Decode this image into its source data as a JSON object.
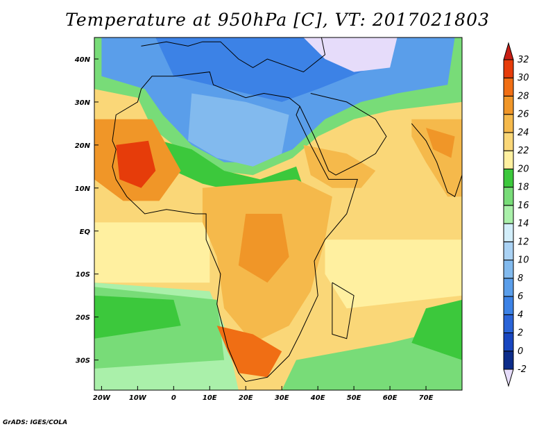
{
  "title": "Temperature at 950hPa [C], VT: 2017021803",
  "credit": "GrADS: IGES/COLA",
  "map": {
    "lon_range": [
      -22,
      80
    ],
    "lat_range": [
      -37,
      45
    ],
    "lon_ticks": [
      {
        "lon": -20,
        "label": "20W"
      },
      {
        "lon": -10,
        "label": "10W"
      },
      {
        "lon": 0,
        "label": "0"
      },
      {
        "lon": 10,
        "label": "10E"
      },
      {
        "lon": 20,
        "label": "20E"
      },
      {
        "lon": 30,
        "label": "30E"
      },
      {
        "lon": 40,
        "label": "40E"
      },
      {
        "lon": 50,
        "label": "50E"
      },
      {
        "lon": 60,
        "label": "60E"
      },
      {
        "lon": 70,
        "label": "70E"
      }
    ],
    "lat_ticks": [
      {
        "lat": 40,
        "label": "40N"
      },
      {
        "lat": 30,
        "label": "30N"
      },
      {
        "lat": 20,
        "label": "20N"
      },
      {
        "lat": 10,
        "label": "10N"
      },
      {
        "lat": 0,
        "label": "EQ"
      },
      {
        "lat": -10,
        "label": "10S"
      },
      {
        "lat": -20,
        "label": "20S"
      },
      {
        "lat": -30,
        "label": "30S"
      }
    ]
  },
  "colorbar": {
    "levels": [
      "-2",
      "0",
      "2",
      "4",
      "6",
      "8",
      "10",
      "12",
      "14",
      "16",
      "18",
      "20",
      "22",
      "24",
      "26",
      "28",
      "30",
      "32"
    ],
    "colors": [
      "#e6dcfa",
      "#0c2c8a",
      "#1846c0",
      "#2a64d8",
      "#3c82e6",
      "#5a9eea",
      "#82baee",
      "#aad2f4",
      "#d2eefa",
      "#aaf0aa",
      "#78dc78",
      "#3cc83c",
      "#fff0a0",
      "#fad778",
      "#f5b94b",
      "#f09628",
      "#f06e14",
      "#e63c0a",
      "#c81e14"
    ]
  },
  "regions": {
    "ocean_base": "#fad778",
    "sahara": "#5a9eea",
    "sahara_core": "#82baee",
    "mediterranean": "#3c82e6",
    "turkey_cold": "#e6dcfa",
    "green_band": "#3cc83c",
    "green_band_light": "#78dc78",
    "west_africa_hot": "#f09628",
    "west_africa_core": "#e63c0a",
    "central_warm": "#f5b94b",
    "south_ocean_green": "#3cc83c",
    "south_ocean_light": "#aaf0aa",
    "south_africa_hot": "#f06e14",
    "india": "#f5b94b",
    "equatorial_pale": "#fff0a0"
  }
}
